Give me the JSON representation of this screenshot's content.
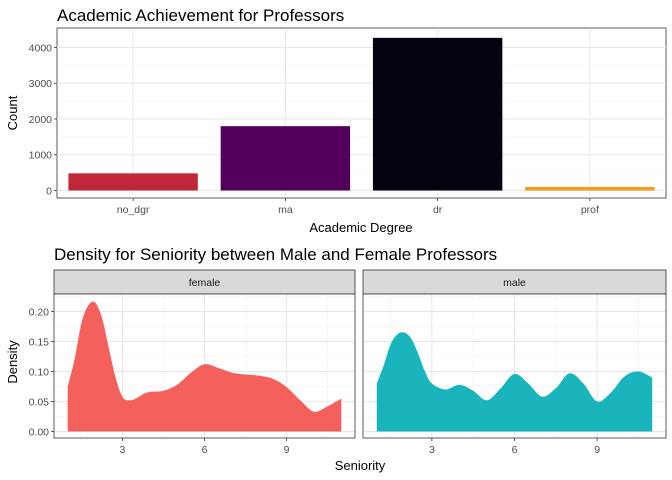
{
  "chart_data": [
    {
      "type": "bar",
      "title": "Academic Achievement for Professors",
      "xlabel": "Academic Degree",
      "ylabel": "Count",
      "categories": [
        "no_dgr",
        "ma",
        "dr",
        "prof"
      ],
      "values": [
        480,
        1800,
        4270,
        100
      ],
      "colors": [
        "#c0283a",
        "#52005a",
        "#04030f",
        "#f89a1c"
      ],
      "ylim": [
        0,
        4500
      ],
      "yticks": [
        0,
        1000,
        2000,
        3000,
        4000
      ],
      "grid": true
    },
    {
      "type": "area",
      "title": "Density for Seniority between Male and Female Professors",
      "xlabel": "Seniority",
      "ylabel": "Density",
      "xlim": [
        0.5,
        11.5
      ],
      "ylim": [
        0,
        0.227
      ],
      "xticks": [
        3,
        6,
        9
      ],
      "yticks": [
        0.0,
        0.05,
        0.1,
        0.15,
        0.2
      ],
      "ytick_labels": [
        "0.00",
        "0.05",
        "0.10",
        "0.15",
        "0.20"
      ],
      "grid": true,
      "facets": [
        {
          "label": "female",
          "color": "#f4605c",
          "x": [
            1,
            1.25,
            1.5,
            1.75,
            2,
            2.25,
            2.5,
            2.75,
            3,
            3.25,
            3.5,
            3.75,
            4,
            4.5,
            5,
            5.5,
            6,
            6.5,
            7,
            7.5,
            8,
            8.5,
            9,
            9.5,
            10,
            10.5,
            11
          ],
          "y": [
            0.075,
            0.12,
            0.18,
            0.21,
            0.215,
            0.19,
            0.14,
            0.09,
            0.058,
            0.052,
            0.055,
            0.062,
            0.066,
            0.068,
            0.078,
            0.098,
            0.112,
            0.106,
            0.098,
            0.095,
            0.093,
            0.088,
            0.074,
            0.052,
            0.033,
            0.042,
            0.055
          ]
        },
        {
          "label": "male",
          "color": "#1ab5bc",
          "x": [
            1,
            1.25,
            1.5,
            1.75,
            2,
            2.25,
            2.5,
            2.75,
            3,
            3.5,
            4,
            4.5,
            5,
            5.5,
            6,
            6.5,
            7,
            7.5,
            8,
            8.5,
            9,
            9.5,
            10,
            10.5,
            11
          ],
          "y": [
            0.08,
            0.11,
            0.145,
            0.162,
            0.165,
            0.155,
            0.13,
            0.1,
            0.08,
            0.07,
            0.078,
            0.068,
            0.052,
            0.072,
            0.096,
            0.08,
            0.058,
            0.072,
            0.097,
            0.08,
            0.05,
            0.065,
            0.092,
            0.1,
            0.09
          ]
        }
      ]
    }
  ]
}
